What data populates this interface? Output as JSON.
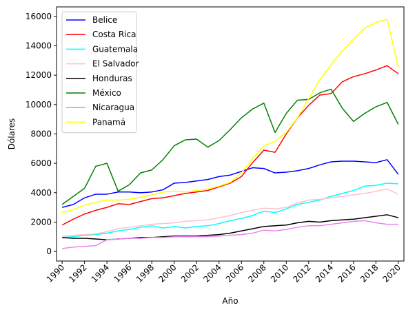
{
  "chart_data": {
    "type": "line",
    "title": "",
    "xlabel": "Año",
    "ylabel": "Dólares",
    "xlim": [
      1989.5,
      2020.5
    ],
    "ylim": [
      -650,
      16650
    ],
    "x_ticks": [
      1990,
      1992,
      1994,
      1996,
      1998,
      2000,
      2002,
      2004,
      2006,
      2008,
      2010,
      2012,
      2014,
      2016,
      2018,
      2020
    ],
    "y_ticks": [
      0,
      2000,
      4000,
      6000,
      8000,
      10000,
      12000,
      14000,
      16000
    ],
    "legend_position": "top-left",
    "grid": false,
    "x": [
      1990,
      1991,
      1992,
      1993,
      1994,
      1995,
      1996,
      1997,
      1998,
      1999,
      2000,
      2001,
      2002,
      2003,
      2004,
      2005,
      2006,
      2007,
      2008,
      2009,
      2010,
      2011,
      2012,
      2013,
      2014,
      2015,
      2016,
      2017,
      2018,
      2019,
      2020
    ],
    "series": [
      {
        "name": "Belice",
        "color": "#0000ff",
        "values": [
          3000,
          3200,
          3650,
          3900,
          3900,
          4050,
          4050,
          4000,
          4050,
          4200,
          4650,
          4700,
          4800,
          4900,
          5100,
          5200,
          5450,
          5700,
          5650,
          5350,
          5400,
          5500,
          5650,
          5900,
          6100,
          6150,
          6150,
          6100,
          6050,
          6250,
          5250
        ]
      },
      {
        "name": "Costa Rica",
        "color": "#ff0000",
        "values": [
          1800,
          2200,
          2550,
          2800,
          3000,
          3250,
          3200,
          3400,
          3600,
          3650,
          3800,
          3950,
          4050,
          4150,
          4400,
          4650,
          5100,
          6050,
          6900,
          6750,
          8000,
          9100,
          9950,
          10650,
          10750,
          11550,
          11900,
          12100,
          12350,
          12650,
          12100
        ]
      },
      {
        "name": "Guatemala",
        "color": "#00ffff",
        "values": [
          950,
          1000,
          1100,
          1150,
          1250,
          1400,
          1500,
          1650,
          1750,
          1600,
          1700,
          1600,
          1700,
          1750,
          1900,
          2100,
          2250,
          2450,
          2750,
          2650,
          2900,
          3200,
          3350,
          3500,
          3750,
          3950,
          4150,
          4450,
          4500,
          4650,
          4600
        ]
      },
      {
        "name": "El Salvador",
        "color": "#ffc0cb",
        "values": [
          1050,
          1100,
          1150,
          1200,
          1350,
          1550,
          1650,
          1750,
          1850,
          1900,
          1950,
          2050,
          2100,
          2150,
          2300,
          2450,
          2650,
          2800,
          2950,
          2900,
          3000,
          3300,
          3500,
          3550,
          3650,
          3750,
          3850,
          3950,
          4100,
          4250,
          3900
        ]
      },
      {
        "name": "Honduras",
        "color": "#000000",
        "values": [
          950,
          900,
          900,
          850,
          800,
          850,
          900,
          950,
          950,
          1000,
          1050,
          1050,
          1050,
          1100,
          1150,
          1250,
          1400,
          1550,
          1700,
          1750,
          1800,
          1950,
          2050,
          2000,
          2100,
          2150,
          2200,
          2300,
          2400,
          2500,
          2300
        ]
      },
      {
        "name": "México",
        "color": "#008000",
        "values": [
          3200,
          3750,
          4300,
          5800,
          6000,
          4100,
          4550,
          5350,
          5550,
          6250,
          7200,
          7600,
          7650,
          7100,
          7550,
          8300,
          9100,
          9700,
          10100,
          8100,
          9400,
          10300,
          10350,
          10800,
          11050,
          9750,
          8850,
          9400,
          9850,
          10150,
          8650
        ]
      },
      {
        "name": "Nicaragua",
        "color": "#ee82ee",
        "values": [
          200,
          300,
          350,
          400,
          800,
          850,
          900,
          900,
          950,
          950,
          1000,
          1000,
          1000,
          1000,
          1050,
          1100,
          1150,
          1250,
          1450,
          1400,
          1500,
          1650,
          1750,
          1750,
          1850,
          1950,
          2050,
          2100,
          1950,
          1850,
          1850
        ]
      },
      {
        "name": "Panamá",
        "color": "#ffff00",
        "values": [
          2650,
          2850,
          3150,
          3350,
          3500,
          3500,
          3550,
          3700,
          3850,
          4050,
          4100,
          4050,
          4150,
          4250,
          4450,
          4700,
          5350,
          6300,
          7200,
          7500,
          8100,
          9100,
          10400,
          11700,
          12700,
          13650,
          14450,
          15200,
          15600,
          15800,
          12550
        ]
      }
    ]
  }
}
